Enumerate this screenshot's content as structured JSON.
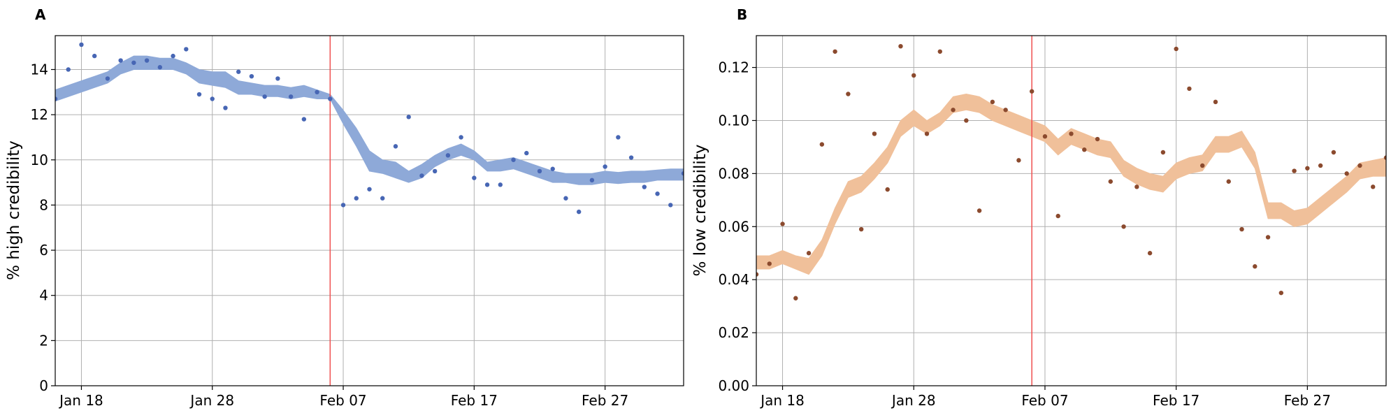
{
  "figure": {
    "background": "#ffffff"
  },
  "chart_data": [
    {
      "type": "scatter",
      "panel_label": "A",
      "title": "",
      "xlabel": "",
      "ylabel": "% high credibility",
      "x_unit": "days since Jan 16",
      "xlim": [
        0,
        48
      ],
      "ylim": [
        0,
        15.5
      ],
      "grid": true,
      "xticks": [
        {
          "x": 2,
          "label": "Jan 18"
        },
        {
          "x": 12,
          "label": "Jan 28"
        },
        {
          "x": 22,
          "label": "Feb 07"
        },
        {
          "x": 32,
          "label": "Feb 17"
        },
        {
          "x": 42,
          "label": "Feb 27"
        }
      ],
      "yticks": [
        {
          "y": 0,
          "label": "0"
        },
        {
          "y": 2,
          "label": "2"
        },
        {
          "y": 4,
          "label": "4"
        },
        {
          "y": 6,
          "label": "6"
        },
        {
          "y": 8,
          "label": "8"
        },
        {
          "y": 10,
          "label": "10"
        },
        {
          "y": 12,
          "label": "12"
        },
        {
          "y": 14,
          "label": "14"
        }
      ],
      "vline": {
        "x": 21,
        "color": "#f05050"
      },
      "band_color": "#8ea9d8",
      "point_color": "#4766b4",
      "band": {
        "x": [
          0,
          1,
          2,
          3,
          4,
          5,
          6,
          7,
          8,
          9,
          10,
          11,
          12,
          13,
          14,
          15,
          16,
          17,
          18,
          19,
          20,
          21,
          22,
          23,
          24,
          25,
          26,
          27,
          28,
          29,
          30,
          31,
          32,
          33,
          34,
          35,
          36,
          37,
          38,
          39,
          40,
          41,
          42,
          43,
          44,
          45,
          46,
          47,
          48
        ],
        "lower": [
          12.6,
          12.8,
          13.0,
          13.2,
          13.4,
          13.8,
          14.0,
          14.0,
          14.0,
          14.0,
          13.8,
          13.4,
          13.3,
          13.2,
          12.9,
          12.9,
          12.8,
          12.8,
          12.7,
          12.8,
          12.7,
          12.7,
          11.6,
          10.6,
          9.5,
          9.4,
          9.2,
          9.0,
          9.2,
          9.7,
          10.0,
          10.2,
          10.0,
          9.5,
          9.5,
          9.6,
          9.4,
          9.2,
          9.0,
          9.0,
          8.9,
          8.9,
          9.0,
          8.95,
          9.0,
          9.0,
          9.1,
          9.1,
          9.1
        ],
        "upper": [
          13.1,
          13.3,
          13.5,
          13.7,
          13.9,
          14.3,
          14.6,
          14.6,
          14.5,
          14.5,
          14.3,
          14.0,
          13.9,
          13.9,
          13.5,
          13.4,
          13.3,
          13.3,
          13.2,
          13.3,
          13.1,
          12.9,
          12.2,
          11.4,
          10.4,
          10.0,
          9.9,
          9.5,
          9.8,
          10.2,
          10.5,
          10.7,
          10.4,
          9.9,
          10.0,
          10.1,
          9.9,
          9.7,
          9.5,
          9.4,
          9.4,
          9.4,
          9.5,
          9.45,
          9.5,
          9.5,
          9.55,
          9.6,
          9.6
        ]
      },
      "points": {
        "x": [
          0,
          1,
          2,
          3,
          4,
          5,
          6,
          7,
          8,
          9,
          10,
          11,
          12,
          13,
          14,
          15,
          16,
          17,
          18,
          19,
          20,
          21,
          22,
          23,
          24,
          25,
          26,
          27,
          28,
          29,
          30,
          31,
          32,
          33,
          34,
          35,
          36,
          37,
          38,
          39,
          40,
          41,
          42,
          43,
          44,
          45,
          46,
          47,
          48
        ],
        "y": [
          12.7,
          14.0,
          15.1,
          14.6,
          13.6,
          14.4,
          14.3,
          14.4,
          14.1,
          14.6,
          14.9,
          12.9,
          12.7,
          12.3,
          13.9,
          13.7,
          12.8,
          13.6,
          12.8,
          11.8,
          13.0,
          12.7,
          8.0,
          8.3,
          8.7,
          8.3,
          10.6,
          11.9,
          9.3,
          9.5,
          10.2,
          11.0,
          9.2,
          8.9,
          8.9,
          10.0,
          10.3,
          9.5,
          9.6,
          8.3,
          7.7,
          9.1,
          9.7,
          11.0,
          10.1,
          8.8,
          8.5,
          8.0,
          9.4
        ]
      }
    },
    {
      "type": "scatter",
      "panel_label": "B",
      "title": "",
      "xlabel": "",
      "ylabel": "% low credibility",
      "x_unit": "days since Jan 16",
      "xlim": [
        0,
        48
      ],
      "ylim": [
        0,
        0.132
      ],
      "grid": true,
      "xticks": [
        {
          "x": 2,
          "label": "Jan 18"
        },
        {
          "x": 12,
          "label": "Jan 28"
        },
        {
          "x": 22,
          "label": "Feb 07"
        },
        {
          "x": 32,
          "label": "Feb 17"
        },
        {
          "x": 42,
          "label": "Feb 27"
        }
      ],
      "yticks": [
        {
          "y": 0.0,
          "label": "0.00"
        },
        {
          "y": 0.02,
          "label": "0.02"
        },
        {
          "y": 0.04,
          "label": "0.04"
        },
        {
          "y": 0.06,
          "label": "0.06"
        },
        {
          "y": 0.08,
          "label": "0.08"
        },
        {
          "y": 0.1,
          "label": "0.10"
        },
        {
          "y": 0.12,
          "label": "0.12"
        }
      ],
      "vline": {
        "x": 21,
        "color": "#f05050"
      },
      "band_color": "#f0c09a",
      "point_color": "#8b4a2e",
      "band": {
        "x": [
          0,
          1,
          2,
          3,
          4,
          5,
          6,
          7,
          8,
          9,
          10,
          11,
          12,
          13,
          14,
          15,
          16,
          17,
          18,
          19,
          20,
          21,
          22,
          23,
          24,
          25,
          26,
          27,
          28,
          29,
          30,
          31,
          32,
          33,
          34,
          35,
          36,
          37,
          38,
          39,
          40,
          41,
          42,
          43,
          44,
          45,
          46,
          47,
          48
        ],
        "lower": [
          0.044,
          0.044,
          0.046,
          0.044,
          0.042,
          0.049,
          0.061,
          0.071,
          0.073,
          0.078,
          0.084,
          0.094,
          0.098,
          0.095,
          0.098,
          0.103,
          0.104,
          0.103,
          0.1,
          0.098,
          0.096,
          0.094,
          0.092,
          0.087,
          0.091,
          0.089,
          0.087,
          0.086,
          0.079,
          0.076,
          0.074,
          0.073,
          0.078,
          0.08,
          0.081,
          0.088,
          0.088,
          0.09,
          0.082,
          0.063,
          0.063,
          0.06,
          0.061,
          0.065,
          0.069,
          0.073,
          0.078,
          0.079,
          0.079
        ],
        "upper": [
          0.049,
          0.049,
          0.051,
          0.049,
          0.048,
          0.055,
          0.067,
          0.077,
          0.079,
          0.084,
          0.09,
          0.1,
          0.104,
          0.1,
          0.103,
          0.109,
          0.11,
          0.109,
          0.106,
          0.104,
          0.102,
          0.1,
          0.098,
          0.093,
          0.097,
          0.095,
          0.093,
          0.092,
          0.085,
          0.082,
          0.08,
          0.079,
          0.084,
          0.086,
          0.087,
          0.094,
          0.094,
          0.096,
          0.088,
          0.069,
          0.069,
          0.066,
          0.067,
          0.071,
          0.075,
          0.079,
          0.084,
          0.085,
          0.086
        ]
      },
      "points": {
        "x": [
          0,
          1,
          2,
          3,
          4,
          5,
          6,
          7,
          8,
          9,
          10,
          11,
          12,
          13,
          14,
          15,
          16,
          17,
          18,
          19,
          20,
          21,
          22,
          23,
          24,
          25,
          26,
          27,
          28,
          29,
          30,
          31,
          32,
          33,
          34,
          35,
          36,
          37,
          38,
          39,
          40,
          41,
          42,
          43,
          44,
          45,
          46,
          47,
          48
        ],
        "y": [
          0.042,
          0.046,
          0.061,
          0.033,
          0.05,
          0.091,
          0.126,
          0.11,
          0.059,
          0.095,
          0.074,
          0.128,
          0.117,
          0.095,
          0.126,
          0.104,
          0.1,
          0.066,
          0.107,
          0.104,
          0.085,
          0.111,
          0.094,
          0.064,
          0.095,
          0.089,
          0.093,
          0.077,
          0.06,
          0.075,
          0.05,
          0.088,
          0.127,
          0.112,
          0.083,
          0.107,
          0.077,
          0.059,
          0.045,
          0.056,
          0.035,
          0.081,
          0.082,
          0.083,
          0.088,
          0.08,
          0.083,
          0.075,
          0.086
        ]
      }
    }
  ]
}
